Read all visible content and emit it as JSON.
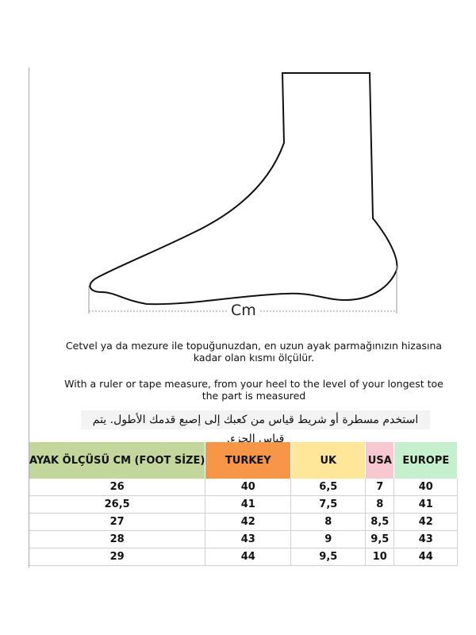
{
  "diagram": {
    "measure_label": "Cm"
  },
  "instructions": {
    "turkish": "Cetvel ya da mezure ile topuğunuzdan, en uzun ayak parmağınızın hizasına kadar olan kısmı ölçülür.",
    "english": "With a ruler or tape measure, from your heel to the level of your longest toe the part is measured",
    "arabic": "استخدم مسطرة أو شريط قياس من كعبك إلى إصبع قدمك الأطول. يتم قياس الجزء."
  },
  "table": {
    "headers": [
      {
        "label": "AYAK ÖLÇÜSÜ CM (FOOT SİZE)",
        "color": "#c3d69b"
      },
      {
        "label": "TURKEY",
        "color": "#f79646"
      },
      {
        "label": "UK",
        "color": "#ffe699"
      },
      {
        "label": "USA",
        "color": "#f8c8d0"
      },
      {
        "label": "EUROPE",
        "color": "#c6efce"
      }
    ],
    "rows": [
      [
        "26",
        "40",
        "6,5",
        "7",
        "40"
      ],
      [
        "26,5",
        "41",
        "7,5",
        "8",
        "41"
      ],
      [
        "27",
        "42",
        "8",
        "8,5",
        "42"
      ],
      [
        "28",
        "43",
        "9",
        "9,5",
        "43"
      ],
      [
        "29",
        "44",
        "9,5",
        "10",
        "44"
      ]
    ]
  }
}
